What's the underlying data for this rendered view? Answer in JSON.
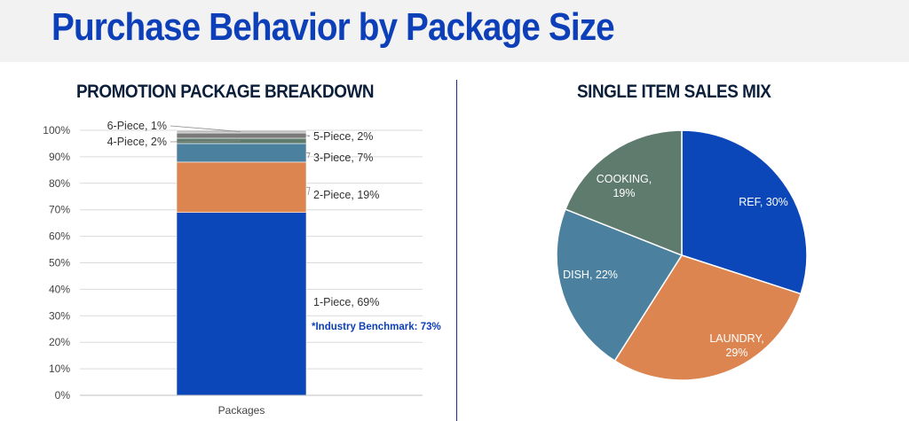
{
  "page_title": "Purchase Behavior by Package Size",
  "chart_data": [
    {
      "type": "bar",
      "stacked": true,
      "title": "PROMOTION PACKAGE BREAKDOWN",
      "categories": [
        "Packages"
      ],
      "ylim": [
        0,
        100
      ],
      "yticks": [
        "0%",
        "10%",
        "20%",
        "30%",
        "40%",
        "50%",
        "60%",
        "70%",
        "80%",
        "90%",
        "100%"
      ],
      "grid": true,
      "series": [
        {
          "name": "1-Piece",
          "values": [
            69
          ],
          "label": "1-Piece, 69%",
          "color": "#0b47b8"
        },
        {
          "name": "2-Piece",
          "values": [
            19
          ],
          "label": "2-Piece, 19%",
          "color": "#dc8550"
        },
        {
          "name": "3-Piece",
          "values": [
            7
          ],
          "label": "3-Piece, 7%",
          "color": "#4b819e"
        },
        {
          "name": "4-Piece",
          "values": [
            2
          ],
          "label": "4-Piece, 2%",
          "color": "#5e7b6d"
        },
        {
          "name": "5-Piece",
          "values": [
            2
          ],
          "label": "5-Piece, 2%",
          "color": "#7a7a7a"
        },
        {
          "name": "6-Piece",
          "values": [
            1
          ],
          "label": "6-Piece, 1%",
          "color": "#bcbcbc"
        }
      ],
      "annotation": "*Industry Benchmark: 73%"
    },
    {
      "type": "pie",
      "title": "SINGLE ITEM SALES MIX",
      "slices": [
        {
          "name": "REF",
          "value": 30,
          "label": "REF, 30%",
          "label_lines": [
            "REF, 30%"
          ],
          "color": "#0b47b8"
        },
        {
          "name": "LAUNDRY",
          "value": 29,
          "label": "LAUNDRY, 29%",
          "label_lines": [
            "LAUNDRY,",
            "29%"
          ],
          "color": "#dc8550"
        },
        {
          "name": "DISH",
          "value": 22,
          "label": "DISH, 22%",
          "label_lines": [
            "DISH, 22%"
          ],
          "color": "#4b819e"
        },
        {
          "name": "COOKING",
          "value": 19,
          "label": "COOKING, 19%",
          "label_lines": [
            "COOKING,",
            "19%"
          ],
          "color": "#5e7b6d"
        }
      ]
    }
  ]
}
